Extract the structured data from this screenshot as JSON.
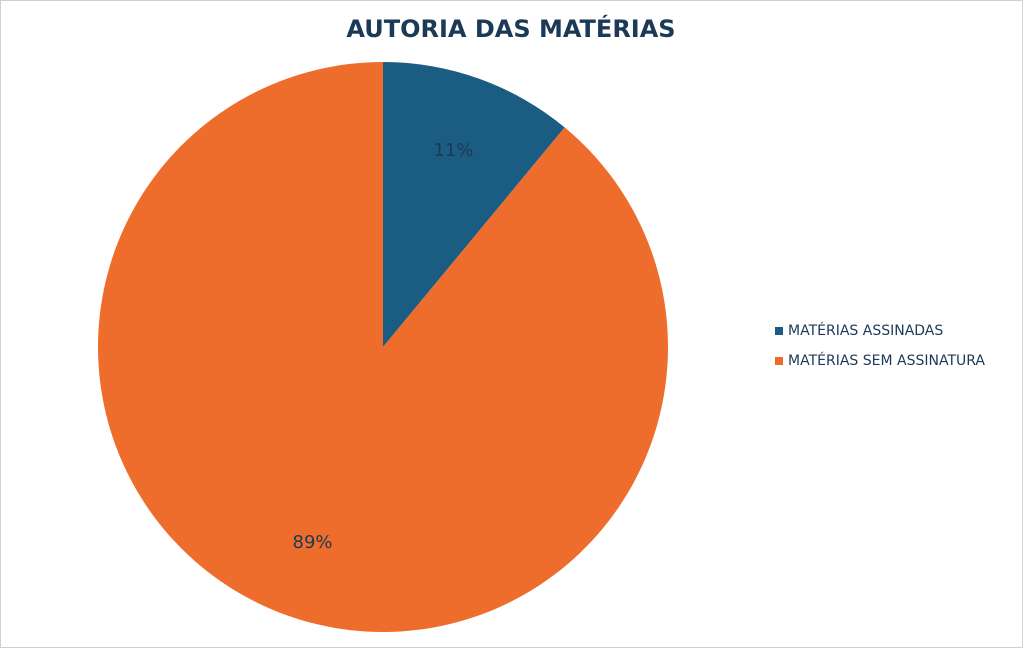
{
  "chart_data": {
    "type": "pie",
    "title": "AUTORIA DAS MATÉRIAS",
    "categories": [
      "MATÉRIAS ASSINADAS",
      "MATÉRIAS SEM ASSINATURA"
    ],
    "values": [
      11,
      89
    ],
    "value_labels": [
      "11%",
      "89%"
    ],
    "colors": [
      "#1a5c82",
      "#ee6d2c"
    ],
    "legend": "right"
  }
}
